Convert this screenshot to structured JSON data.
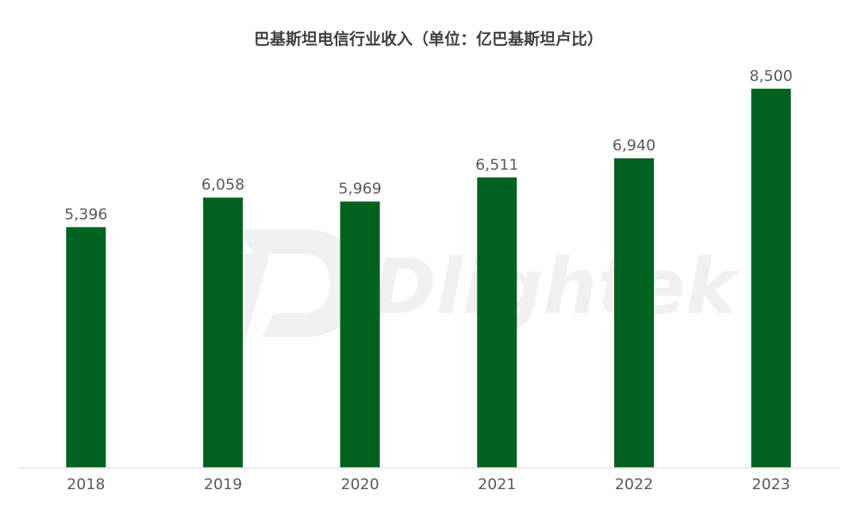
{
  "watermark": {
    "text": "Dlightek"
  },
  "chart_data": {
    "type": "bar",
    "title": "巴基斯坦电信行业收入（单位：亿巴基斯坦卢比）",
    "categories": [
      "2018",
      "2019",
      "2020",
      "2021",
      "2022",
      "2023"
    ],
    "values": [
      5396,
      6058,
      5969,
      6511,
      6940,
      8500
    ],
    "value_labels": [
      "5,396",
      "6,058",
      "5,969",
      "6,511",
      "6,940",
      "8,500"
    ],
    "xlabel": "",
    "ylabel": "",
    "ylim": [
      0,
      9600
    ],
    "grid": false,
    "legend": "none",
    "colors": {
      "bar": "#006120",
      "axis": "#d9d9d9",
      "text": "#595959",
      "title": "#404040"
    }
  }
}
